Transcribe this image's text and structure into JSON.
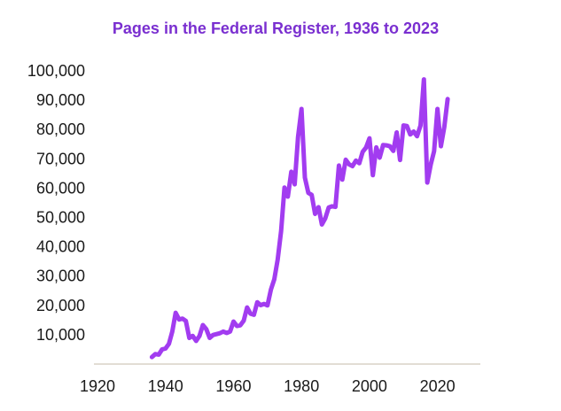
{
  "chart_data": {
    "type": "line",
    "title": "Pages in the Federal Register, 1936 to 2023",
    "xlabel": "",
    "ylabel": "",
    "xlim": [
      1920,
      2030
    ],
    "ylim": [
      0,
      100000
    ],
    "x_ticks": [
      1920,
      1940,
      1960,
      1980,
      2000,
      2020
    ],
    "x_tick_labels": [
      "1920",
      "1940",
      "1960",
      "1980",
      "2000",
      "2020"
    ],
    "y_ticks": [
      10000,
      20000,
      30000,
      40000,
      50000,
      60000,
      70000,
      80000,
      90000,
      100000
    ],
    "y_tick_labels": [
      "10,000",
      "20,000",
      "30,000",
      "40,000",
      "50,000",
      "60,000",
      "70,000",
      "80,000",
      "90,000",
      "100,000"
    ],
    "grid": false,
    "legend": "none",
    "colors": {
      "line": "#a23cf0",
      "title": "#7a2fd0",
      "axis": "#d9d2c6"
    },
    "series": [
      {
        "name": "Pages",
        "x": [
          1936,
          1937,
          1938,
          1939,
          1940,
          1941,
          1942,
          1943,
          1944,
          1945,
          1946,
          1947,
          1948,
          1949,
          1950,
          1951,
          1952,
          1953,
          1954,
          1955,
          1956,
          1957,
          1958,
          1959,
          1960,
          1961,
          1962,
          1963,
          1964,
          1965,
          1966,
          1967,
          1968,
          1969,
          1970,
          1971,
          1972,
          1973,
          1974,
          1975,
          1976,
          1977,
          1978,
          1979,
          1980,
          1981,
          1982,
          1983,
          1984,
          1985,
          1986,
          1987,
          1988,
          1989,
          1990,
          1991,
          1992,
          1993,
          1994,
          1995,
          1996,
          1997,
          1998,
          1999,
          2000,
          2001,
          2002,
          2003,
          2004,
          2005,
          2006,
          2007,
          2008,
          2009,
          2010,
          2011,
          2012,
          2013,
          2014,
          2015,
          2016,
          2017,
          2018,
          2019,
          2020,
          2021,
          2022,
          2023
        ],
        "values": [
          2400,
          3400,
          3200,
          5000,
          5300,
          6900,
          11100,
          17500,
          15200,
          15500,
          14700,
          8900,
          9600,
          7900,
          9600,
          13300,
          11900,
          8900,
          9900,
          10200,
          10500,
          11100,
          10600,
          11100,
          14500,
          13000,
          13200,
          14800,
          19300,
          17200,
          16800,
          21100,
          20100,
          20500,
          20000,
          25400,
          28900,
          35600,
          45400,
          60200,
          57100,
          65600,
          61300,
          77500,
          87000,
          63600,
          58400,
          57700,
          51200,
          53500,
          47600,
          49700,
          53400,
          53800,
          53600,
          67700,
          62900,
          69700,
          68100,
          67500,
          69400,
          68500,
          72400,
          73900,
          77000,
          64400,
          73900,
          70400,
          74700,
          74600,
          74300,
          72700,
          79000,
          69600,
          81400,
          81200,
          78300,
          79300,
          77700,
          81400,
          97100,
          61900,
          68000,
          72600,
          87000,
          74300,
          80800,
          90400
        ]
      }
    ]
  }
}
